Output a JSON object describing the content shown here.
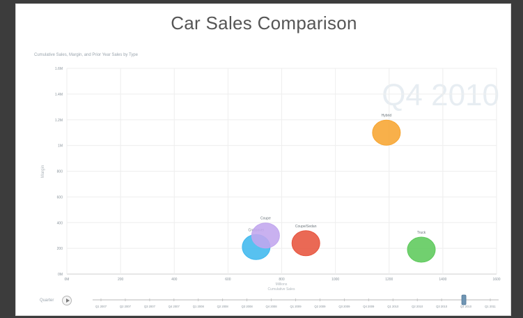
{
  "chart_data": {
    "type": "scatter",
    "title": "Car Sales Comparison",
    "subtitle": "Cumulative Sales, Margin, and Prior Year Sales by Type",
    "watermark": "Q4 2010",
    "xlabel": "Cumulative Sales",
    "xlabel_top": "Millions",
    "ylabel": "Margin",
    "xlim": [
      0,
      1600
    ],
    "ylim": [
      0,
      1600
    ],
    "x_ticks": [
      "0M",
      "200",
      "400",
      "600",
      "800",
      "1000",
      "1200",
      "1400",
      "1600"
    ],
    "y_ticks": [
      "0M",
      "200",
      "400",
      "600",
      "800",
      "1M",
      "1.2M",
      "1.4M",
      "1.6M"
    ],
    "grid": true,
    "points": [
      {
        "name": "Hybrid",
        "x": 1190,
        "y": 1100,
        "color": "#f7a531"
      },
      {
        "name": "Truck",
        "x": 1320,
        "y": 190,
        "color": "#5dc95b"
      },
      {
        "name": "Coupe/Sedan",
        "x": 890,
        "y": 240,
        "color": "#e7543e"
      },
      {
        "name": "Crossover",
        "x": 705,
        "y": 210,
        "color": "#40b8ee"
      },
      {
        "name": "Coupe",
        "x": 740,
        "y": 300,
        "color": "#c1a6ee"
      }
    ]
  },
  "timeline": {
    "play_label": "Quarter",
    "labels": [
      "Q1 2007",
      "Q2 2007",
      "Q3 2007",
      "Q4 2007",
      "Q1 2008",
      "Q2 2008",
      "Q3 2008",
      "Q4 2008",
      "Q1 2009",
      "Q2 2009",
      "Q3 2009",
      "Q4 2009",
      "Q1 2010",
      "Q2 2010",
      "Q3 2010",
      "Q4 2010",
      "Q1 2011"
    ],
    "current": "Q4 2010",
    "current_index": 15
  }
}
